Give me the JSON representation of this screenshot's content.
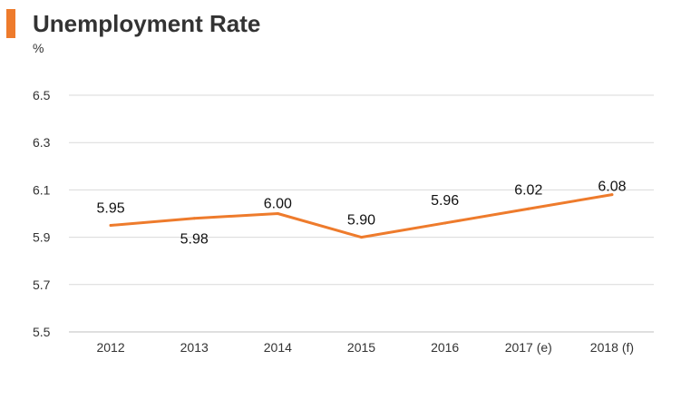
{
  "header": {
    "title": "Unemployment Rate",
    "unit": "%"
  },
  "colors": {
    "accent": "#ee7b2c",
    "line": "#ee7b2c",
    "grid": "#d9d9d9",
    "axis": "#bfbfbf"
  },
  "chart_data": {
    "type": "line",
    "title": "Unemployment Rate",
    "ylabel": "%",
    "xlabel": "",
    "categories": [
      "2012",
      "2013",
      "2014",
      "2015",
      "2016",
      "2017 (e)",
      "2018 (f)"
    ],
    "series": [
      {
        "values": [
          5.95,
          5.98,
          6.0,
          5.9,
          5.96,
          6.02,
          6.08
        ],
        "labels": [
          "5.95",
          "5.98",
          "6.00",
          "5.90",
          "5.96",
          "6.02",
          "6.08"
        ]
      }
    ],
    "ylim": [
      5.5,
      6.5
    ],
    "yticks": [
      "5.5",
      "5.7",
      "5.9",
      "6.1",
      "6.3",
      "6.5"
    ],
    "grid": true,
    "legend": "none"
  }
}
